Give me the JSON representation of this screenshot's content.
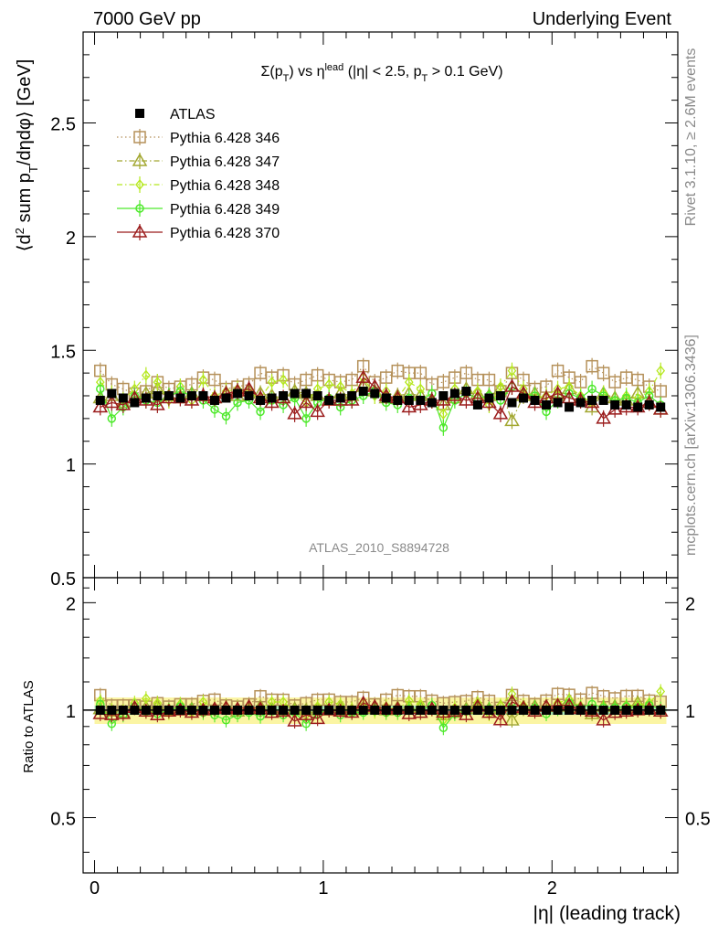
{
  "header": {
    "energy_label": "7000 GeV pp",
    "process_label": "Underlying Event",
    "rivet_label": "Rivet 3.1.10, ≥ 2.6M events",
    "mcplots_label": "mcplots.cern.ch [arXiv:1306.3436]",
    "analysis_id": "ATLAS_2010_S8894728"
  },
  "chart_data": {
    "type": "scatter",
    "title": {
      "sigma": "Σ(p",
      "sub_T": "T",
      "vs": ") vs η",
      "sup": "lead",
      "cut": " (|η| < 2.5, p",
      "sub_T2": "T",
      "tail": " > 0.1 GeV)"
    },
    "ylabel": {
      "open": "⟨d",
      "sup": "2",
      "mid": " sum p",
      "sub": "T",
      "rest": "/dηdφ⟩ [GeV]"
    },
    "xlabel": "|η| (leading track)",
    "ratio_ylabel": "Ratio to ATLAS",
    "xlim": [
      -0.05,
      2.55
    ],
    "ylim": [
      0.5,
      2.9
    ],
    "ratio_ylim": [
      0.35,
      2.35
    ],
    "main_ytick_labels": [
      "0.5",
      "1",
      "1.5",
      "2",
      "2.5"
    ],
    "ratio_ytick_labels": [
      "0.5",
      "1",
      "2"
    ],
    "xtick_labels": [
      "0",
      "1",
      "2"
    ],
    "legend_position": "top-left",
    "x": [
      0.025,
      0.075,
      0.125,
      0.175,
      0.225,
      0.275,
      0.325,
      0.375,
      0.425,
      0.475,
      0.525,
      0.575,
      0.625,
      0.675,
      0.725,
      0.775,
      0.825,
      0.875,
      0.925,
      0.975,
      1.025,
      1.075,
      1.125,
      1.175,
      1.225,
      1.275,
      1.325,
      1.375,
      1.425,
      1.475,
      1.525,
      1.575,
      1.625,
      1.675,
      1.725,
      1.775,
      1.825,
      1.875,
      1.925,
      1.975,
      2.025,
      2.075,
      2.125,
      2.175,
      2.225,
      2.275,
      2.325,
      2.375,
      2.425,
      2.475
    ],
    "series": [
      {
        "name": "ATLAS",
        "color": "#000000",
        "marker": "filled-square",
        "line": "none",
        "values": [
          1.28,
          1.31,
          1.29,
          1.27,
          1.29,
          1.3,
          1.3,
          1.29,
          1.3,
          1.3,
          1.28,
          1.29,
          1.31,
          1.3,
          1.28,
          1.29,
          1.3,
          1.31,
          1.31,
          1.3,
          1.28,
          1.29,
          1.3,
          1.32,
          1.31,
          1.29,
          1.28,
          1.28,
          1.28,
          1.27,
          1.3,
          1.31,
          1.32,
          1.26,
          1.29,
          1.3,
          1.27,
          1.29,
          1.28,
          1.26,
          1.27,
          1.25,
          1.27,
          1.28,
          1.28,
          1.26,
          1.26,
          1.25,
          1.26,
          1.25
        ]
      },
      {
        "name": "Pythia 6.428 346",
        "color": "#b5915a",
        "marker": "open-square",
        "line": "dotted",
        "values": [
          1.41,
          1.35,
          1.33,
          1.31,
          1.32,
          1.36,
          1.33,
          1.34,
          1.35,
          1.38,
          1.37,
          1.33,
          1.34,
          1.35,
          1.4,
          1.38,
          1.39,
          1.35,
          1.37,
          1.39,
          1.37,
          1.36,
          1.37,
          1.43,
          1.36,
          1.38,
          1.41,
          1.4,
          1.4,
          1.35,
          1.36,
          1.38,
          1.4,
          1.37,
          1.37,
          1.32,
          1.4,
          1.37,
          1.33,
          1.34,
          1.41,
          1.38,
          1.36,
          1.43,
          1.4,
          1.36,
          1.38,
          1.37,
          1.34,
          1.32
        ]
      },
      {
        "name": "Pythia 6.428 347",
        "color": "#a3a832",
        "marker": "open-triangle",
        "line": "dash-dot",
        "values": [
          1.29,
          1.3,
          1.27,
          1.29,
          1.31,
          1.33,
          1.3,
          1.29,
          1.31,
          1.3,
          1.29,
          1.31,
          1.3,
          1.32,
          1.31,
          1.3,
          1.29,
          1.32,
          1.31,
          1.3,
          1.28,
          1.31,
          1.3,
          1.34,
          1.32,
          1.29,
          1.3,
          1.31,
          1.3,
          1.28,
          1.26,
          1.29,
          1.33,
          1.31,
          1.3,
          1.33,
          1.19,
          1.3,
          1.31,
          1.29,
          1.3,
          1.33,
          1.29,
          1.25,
          1.31,
          1.29,
          1.28,
          1.31,
          1.27,
          1.24
        ]
      },
      {
        "name": "Pythia 6.428 348",
        "color": "#b5e81e",
        "marker": "open-diamond",
        "line": "dash-dot",
        "values": [
          1.36,
          1.31,
          1.28,
          1.33,
          1.39,
          1.36,
          1.28,
          1.34,
          1.28,
          1.37,
          1.3,
          1.32,
          1.33,
          1.31,
          1.29,
          1.36,
          1.37,
          1.3,
          1.27,
          1.33,
          1.35,
          1.34,
          1.31,
          1.38,
          1.3,
          1.32,
          1.29,
          1.36,
          1.33,
          1.28,
          1.22,
          1.33,
          1.31,
          1.32,
          1.26,
          1.34,
          1.41,
          1.33,
          1.29,
          1.3,
          1.33,
          1.34,
          1.3,
          1.27,
          1.31,
          1.28,
          1.3,
          1.29,
          1.32,
          1.41
        ]
      },
      {
        "name": "Pythia 6.428 349",
        "color": "#4ee92c",
        "marker": "open-circle",
        "line": "solid",
        "values": [
          1.33,
          1.2,
          1.25,
          1.3,
          1.28,
          1.27,
          1.3,
          1.32,
          1.3,
          1.28,
          1.24,
          1.21,
          1.27,
          1.28,
          1.23,
          1.28,
          1.26,
          1.29,
          1.2,
          1.27,
          1.29,
          1.25,
          1.28,
          1.3,
          1.32,
          1.27,
          1.26,
          1.29,
          1.28,
          1.31,
          1.16,
          1.28,
          1.31,
          1.29,
          1.3,
          1.28,
          1.34,
          1.31,
          1.3,
          1.23,
          1.28,
          1.31,
          1.29,
          1.33,
          1.3,
          1.28,
          1.29,
          1.27,
          1.3,
          1.26
        ]
      },
      {
        "name": "Pythia 6.428 370",
        "color": "#9b1c1c",
        "marker": "open-triangle",
        "line": "solid",
        "values": [
          1.25,
          1.27,
          1.26,
          1.29,
          1.28,
          1.26,
          1.29,
          1.29,
          1.28,
          1.3,
          1.29,
          1.31,
          1.32,
          1.33,
          1.29,
          1.27,
          1.29,
          1.22,
          1.27,
          1.23,
          1.28,
          1.28,
          1.28,
          1.38,
          1.34,
          1.3,
          1.29,
          1.25,
          1.26,
          1.28,
          1.28,
          1.3,
          1.28,
          1.29,
          1.27,
          1.22,
          1.34,
          1.31,
          1.27,
          1.29,
          1.31,
          1.29,
          1.28,
          1.27,
          1.2,
          1.24,
          1.25,
          1.25,
          1.27,
          1.24
        ]
      }
    ]
  }
}
